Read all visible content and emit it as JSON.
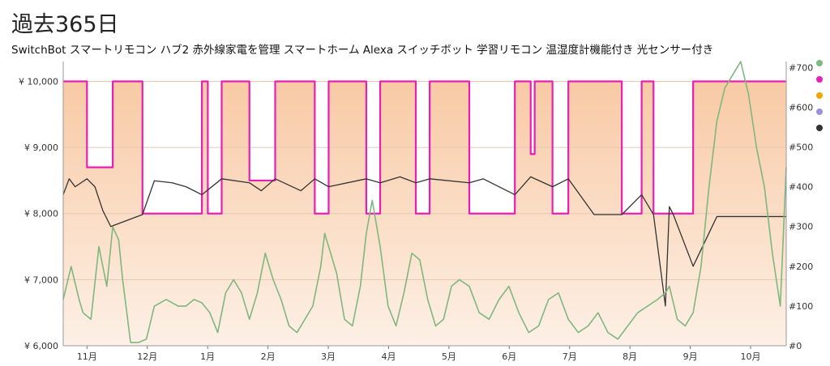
{
  "chart_data": {
    "type": "line",
    "title": "過去365日",
    "subtitle": "SwitchBot スマートリモコン ハブ2 赤外線家電を管理 スマートホーム Alexa スイッチボット 学習リモコン 温湿度計機能付き 光センサー付き",
    "x_ticks": [
      "11月",
      "12月",
      "1月",
      "2月",
      "3月",
      "4月",
      "5月",
      "6月",
      "7月",
      "8月",
      "9月",
      "10月"
    ],
    "y_left": {
      "ticks": [
        "¥ 6,000",
        "¥ 7,000",
        "¥ 8,000",
        "¥ 9,000",
        "¥ 10,000"
      ],
      "values": [
        6000,
        7000,
        8000,
        9000,
        10000
      ],
      "range": [
        6000,
        10300
      ]
    },
    "y_right": {
      "ticks": [
        "#0",
        "#100",
        "#200",
        "#300",
        "#400",
        "#500",
        "#600",
        "#700"
      ],
      "values": [
        0,
        100,
        200,
        300,
        400,
        500,
        600,
        700
      ],
      "range": [
        0,
        715
      ]
    },
    "x_range": [
      0,
      365
    ],
    "legend": {
      "placement": "right",
      "colors": [
        "#7fb77e",
        "#e91eb4",
        "#f4a300",
        "#9d8fe0",
        "#333333"
      ]
    },
    "series": [
      {
        "color": "#e91eb4",
        "axis": "left",
        "kind": "step",
        "x": [
          0,
          12,
          12,
          25,
          25,
          40,
          40,
          70,
          70,
          73,
          73,
          80,
          80,
          94,
          94,
          107,
          107,
          127,
          127,
          134,
          134,
          153,
          153,
          160,
          160,
          178,
          178,
          185,
          185,
          205,
          205,
          228,
          228,
          236,
          236,
          238,
          238,
          247,
          247,
          255,
          255,
          282,
          282,
          292,
          292,
          298,
          298,
          307,
          307,
          318,
          318,
          365
        ],
        "values": [
          10000,
          10000,
          8700,
          8700,
          10000,
          10000,
          8000,
          8000,
          10000,
          10000,
          8000,
          8000,
          10000,
          10000,
          8500,
          8500,
          10000,
          10000,
          8000,
          8000,
          10000,
          10000,
          8000,
          8000,
          10000,
          10000,
          8000,
          8000,
          10000,
          10000,
          8000,
          8000,
          10000,
          10000,
          8900,
          8900,
          10000,
          10000,
          8000,
          8000,
          10000,
          10000,
          8000,
          8000,
          10000,
          10000,
          8000,
          8000,
          8000,
          8000,
          10000,
          10000
        ]
      },
      {
        "color": "#333333",
        "axis": "right",
        "kind": "step",
        "x": [
          0,
          3,
          6,
          12,
          16,
          20,
          24,
          40,
          46,
          55,
          62,
          70,
          80,
          94,
          100,
          107,
          120,
          127,
          134,
          153,
          160,
          170,
          178,
          185,
          205,
          212,
          228,
          236,
          247,
          255,
          268,
          282,
          292,
          298,
          304,
          306,
          308,
          318,
          330,
          350,
          365
        ],
        "values": [
          380,
          420,
          400,
          420,
          400,
          340,
          300,
          330,
          415,
          410,
          400,
          380,
          420,
          410,
          390,
          420,
          390,
          420,
          400,
          420,
          410,
          425,
          410,
          420,
          410,
          420,
          380,
          425,
          400,
          420,
          330,
          330,
          380,
          330,
          100,
          350,
          330,
          200,
          325,
          325,
          325
        ]
      },
      {
        "color": "#7fb77e",
        "axis": "left",
        "kind": "line",
        "x": [
          0,
          4,
          8,
          10,
          14,
          18,
          22,
          25,
          28,
          30,
          34,
          38,
          42,
          46,
          52,
          58,
          62,
          66,
          70,
          74,
          78,
          82,
          86,
          90,
          94,
          98,
          102,
          106,
          110,
          114,
          118,
          122,
          126,
          130,
          132,
          134,
          138,
          142,
          146,
          150,
          153,
          156,
          160,
          164,
          168,
          172,
          176,
          180,
          184,
          188,
          192,
          196,
          200,
          205,
          210,
          215,
          220,
          225,
          230,
          235,
          240,
          245,
          250,
          255,
          260,
          265,
          270,
          275,
          280,
          285,
          290,
          295,
          300,
          304,
          306,
          310,
          314,
          318,
          322,
          326,
          330,
          334,
          338,
          342,
          346,
          350,
          354,
          358,
          362,
          365
        ],
        "values": [
          6700,
          7200,
          6700,
          6500,
          6400,
          7500,
          6900,
          7800,
          7600,
          7000,
          6050,
          6050,
          6100,
          6600,
          6700,
          6600,
          6600,
          6700,
          6650,
          6500,
          6200,
          6800,
          7000,
          6800,
          6400,
          6800,
          7400,
          7000,
          6700,
          6300,
          6200,
          6400,
          6600,
          7200,
          7700,
          7500,
          7100,
          6400,
          6300,
          6900,
          7700,
          8200,
          7500,
          6600,
          6300,
          6800,
          7400,
          7300,
          6700,
          6300,
          6400,
          6900,
          7000,
          6900,
          6500,
          6400,
          6700,
          6900,
          6500,
          6200,
          6300,
          6700,
          6800,
          6400,
          6200,
          6300,
          6500,
          6200,
          6100,
          6300,
          6500,
          6600,
          6700,
          6800,
          6900,
          6400,
          6300,
          6500,
          7200,
          8400,
          9400,
          9900,
          10100,
          10300,
          9800,
          9000,
          8400,
          7400,
          6600,
          8700
        ]
      }
    ]
  }
}
